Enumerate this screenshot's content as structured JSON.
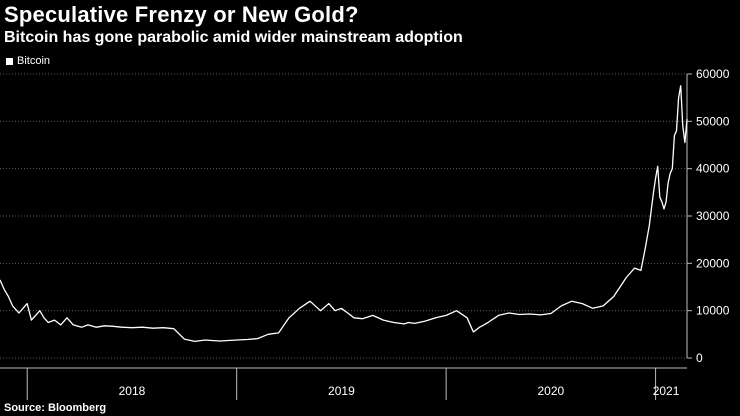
{
  "header": {
    "title": "Speculative Frenzy or New Gold?",
    "subtitle": "Bitcoin has gone parabolic amid wider mainstream adoption"
  },
  "legend": {
    "label": "Bitcoin",
    "color": "#ffffff"
  },
  "footer": {
    "source": "Source: Bloomberg"
  },
  "chart_data": {
    "type": "line",
    "title": "Speculative Frenzy or New Gold?",
    "subtitle": "Bitcoin has gone parabolic amid wider mainstream adoption",
    "xlabel": "",
    "ylabel": "",
    "ylim": [
      0,
      60000
    ],
    "xlim": [
      2017.87,
      2021.15
    ],
    "y_ticks": [
      0,
      10000,
      20000,
      30000,
      40000,
      50000,
      60000
    ],
    "x_tick_labels": [
      "2018",
      "2019",
      "2020",
      "2021"
    ],
    "x_tick_label_positions": [
      2018.5,
      2019.5,
      2020.5,
      2021.05
    ],
    "x_boundaries": [
      2018.0,
      2019.0,
      2020.0,
      2021.0
    ],
    "grid": true,
    "legend_position": "top-left",
    "series": [
      {
        "name": "Bitcoin",
        "color": "#ffffff",
        "x": [
          2017.87,
          2017.89,
          2017.91,
          2017.93,
          2017.96,
          2017.98,
          2018.0,
          2018.02,
          2018.04,
          2018.06,
          2018.08,
          2018.1,
          2018.13,
          2018.16,
          2018.19,
          2018.22,
          2018.26,
          2018.29,
          2018.33,
          2018.37,
          2018.41,
          2018.45,
          2018.5,
          2018.55,
          2018.6,
          2018.65,
          2018.7,
          2018.75,
          2018.8,
          2018.85,
          2018.88,
          2018.92,
          2018.96,
          2019.0,
          2019.05,
          2019.1,
          2019.15,
          2019.2,
          2019.25,
          2019.3,
          2019.35,
          2019.4,
          2019.44,
          2019.47,
          2019.5,
          2019.53,
          2019.56,
          2019.6,
          2019.65,
          2019.7,
          2019.75,
          2019.8,
          2019.82,
          2019.85,
          2019.9,
          2019.95,
          2020.0,
          2020.05,
          2020.1,
          2020.13,
          2020.16,
          2020.18,
          2020.2,
          2020.25,
          2020.3,
          2020.35,
          2020.4,
          2020.45,
          2020.5,
          2020.55,
          2020.6,
          2020.65,
          2020.7,
          2020.75,
          2020.8,
          2020.83,
          2020.86,
          2020.9,
          2020.93,
          2020.95,
          2020.97,
          2020.99,
          2021.0,
          2021.01,
          2021.02,
          2021.03,
          2021.04,
          2021.05,
          2021.06,
          2021.07,
          2021.08,
          2021.09,
          2021.1,
          2021.11,
          2021.12,
          2021.13,
          2021.14,
          2021.15
        ],
        "values": [
          16500,
          14500,
          13000,
          11000,
          9500,
          10500,
          11500,
          8000,
          9000,
          10000,
          8500,
          7500,
          8000,
          7000,
          8500,
          7000,
          6500,
          7000,
          6500,
          6800,
          6700,
          6500,
          6400,
          6500,
          6300,
          6400,
          6200,
          4000,
          3500,
          3800,
          3700,
          3600,
          3700,
          3800,
          3900,
          4100,
          5000,
          5300,
          8500,
          10500,
          12000,
          10000,
          11500,
          10000,
          10500,
          9500,
          8500,
          8300,
          9000,
          8000,
          7500,
          7200,
          7500,
          7300,
          7800,
          8500,
          9000,
          10000,
          8500,
          5500,
          6500,
          7000,
          7500,
          9000,
          9500,
          9200,
          9300,
          9100,
          9400,
          11000,
          12000,
          11500,
          10500,
          11000,
          13000,
          15000,
          17000,
          19000,
          18500,
          23000,
          28000,
          35000,
          38000,
          40500,
          34000,
          33000,
          31500,
          33000,
          37000,
          39000,
          40000,
          47000,
          48000,
          55000,
          57500,
          49000,
          45500,
          50500
        ]
      }
    ]
  }
}
